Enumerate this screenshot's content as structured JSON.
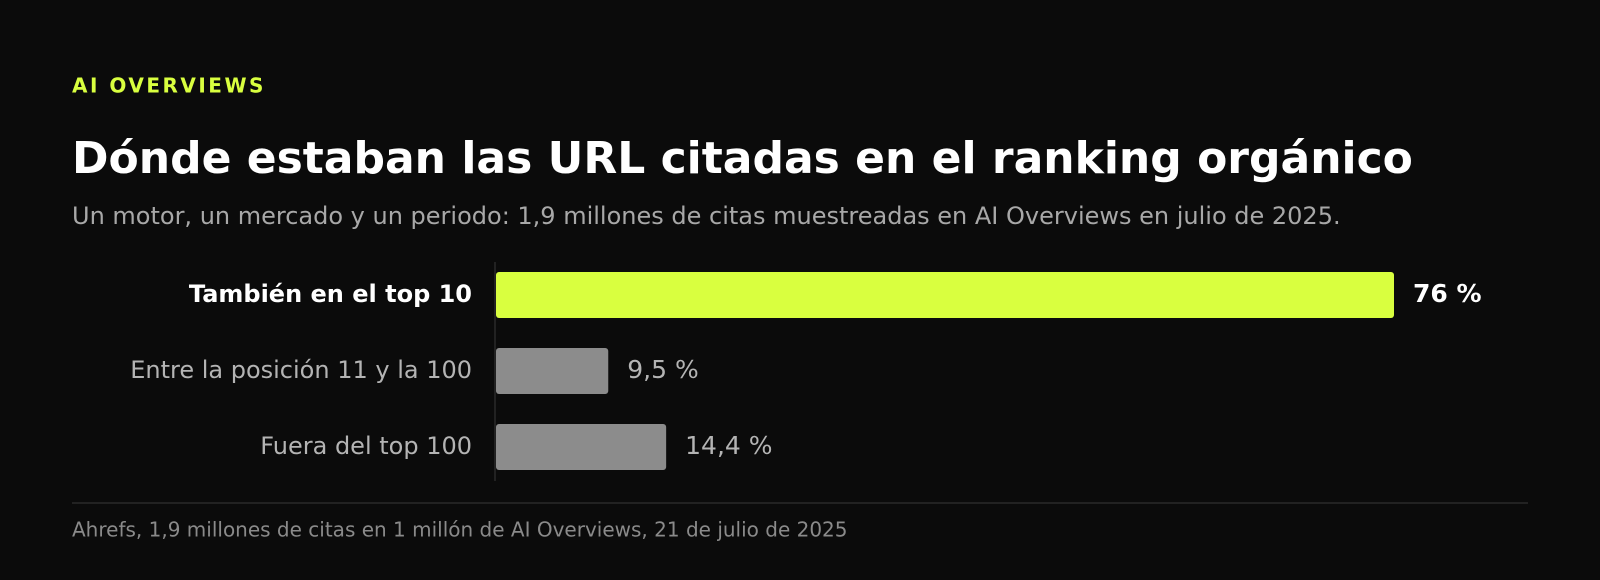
{
  "chart_data": {
    "type": "bar",
    "orientation": "horizontal",
    "eyebrow": "AI OVERVIEWS",
    "title": "Dónde estaban las URL citadas en el ranking orgánico",
    "subtitle": "Un motor, un mercado y un periodo: 1,9 millones de citas muestreadas en AI Overviews en julio de 2025.",
    "categories": [
      "También en el top 10",
      "Entre la posición 11 y la 100",
      "Fuera del top 100"
    ],
    "values": [
      76,
      9.5,
      14.4
    ],
    "value_labels": [
      "76 %",
      "9,5 %",
      "14,4 %"
    ],
    "colors": [
      "#d9ff3f",
      "#8c8c8c",
      "#8c8c8c"
    ],
    "source": "Ahrefs, 1,9 millones de citas en 1 millón de AI Overviews, 21 de julio de 2025"
  }
}
